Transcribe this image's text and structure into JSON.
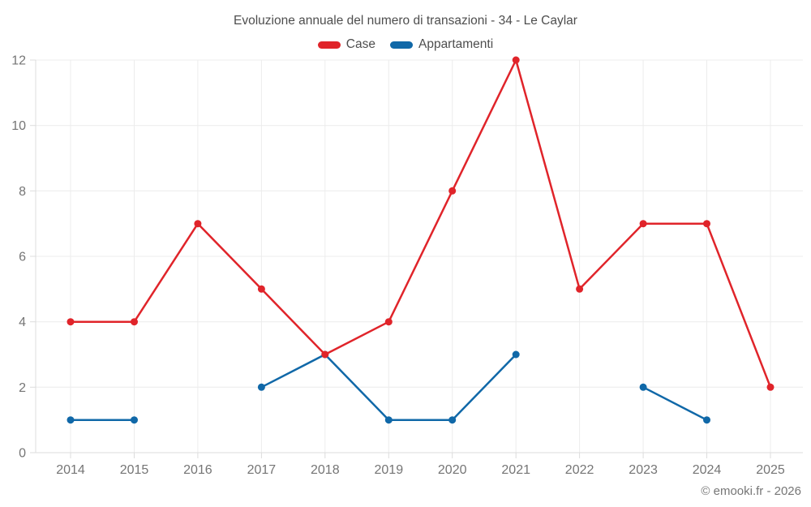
{
  "header": {
    "title": "Evoluzione annuale del numero di transazioni - 34 - Le Caylar"
  },
  "legend": {
    "items": [
      {
        "label": "Case",
        "color": "#e0242a"
      },
      {
        "label": "Appartamenti",
        "color": "#1068a8"
      }
    ]
  },
  "footer": {
    "copyright": "© emooki.fr - 2026"
  },
  "chart_data": {
    "type": "line",
    "title": "Evoluzione annuale del numero di transazioni - 34 - Le Caylar",
    "categories": [
      "2014",
      "2015",
      "2016",
      "2017",
      "2018",
      "2019",
      "2020",
      "2021",
      "2022",
      "2023",
      "2024",
      "2025"
    ],
    "series": [
      {
        "name": "Case",
        "color": "#e0242a",
        "values": [
          4,
          4,
          7,
          5,
          3,
          4,
          8,
          12,
          5,
          7,
          7,
          2
        ]
      },
      {
        "name": "Appartamenti",
        "color": "#1068a8",
        "values": [
          1,
          1,
          null,
          2,
          3,
          1,
          1,
          3,
          null,
          2,
          1,
          null
        ]
      }
    ],
    "ylim": [
      0,
      12
    ],
    "y_ticks": [
      0,
      2,
      4,
      6,
      8,
      10,
      12
    ],
    "grid": true,
    "legend_position": "top",
    "colors": {
      "grid": "#ececec",
      "axis": "#dcdcdc",
      "tick_label": "#757575"
    }
  }
}
